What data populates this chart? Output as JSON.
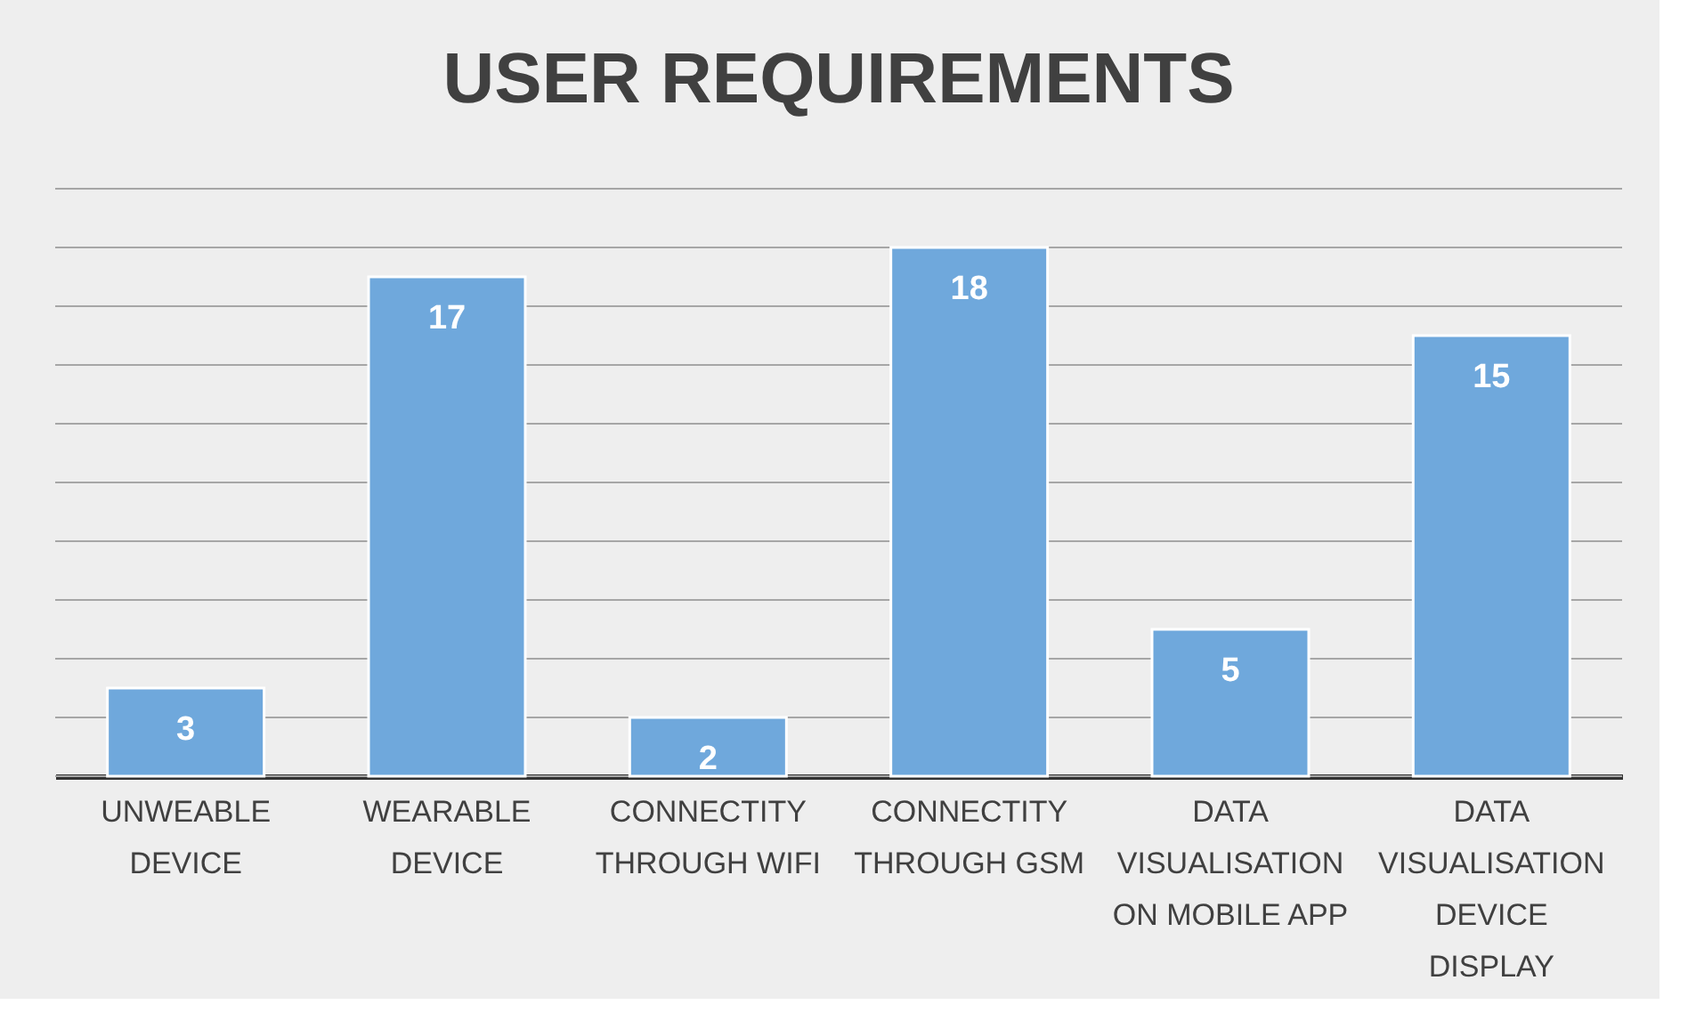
{
  "chart_data": {
    "type": "bar",
    "title": "USER REQUIREMENTS",
    "categories": [
      "UNWEABLE DEVICE",
      "WEARABLE DEVICE",
      "CONNECTITY THROUGH WIFI",
      "CONNECTITY THROUGH GSM",
      "DATA VISUALISATION ON MOBILE APP",
      "DATA VISUALISATION DEVICE DISPLAY"
    ],
    "values": [
      3,
      17,
      2,
      18,
      5,
      15
    ],
    "color": "#6fa8dc",
    "ylim": [
      0,
      20
    ],
    "yticks": [
      {
        "value": 0,
        "label": null
      },
      {
        "value": 2,
        "label": null
      },
      {
        "value": 4,
        "label": null
      },
      {
        "value": 6,
        "label": null
      },
      {
        "value": 8,
        "label": null
      },
      {
        "value": 10,
        "label": null
      },
      {
        "value": 12,
        "label": null
      },
      {
        "value": 14,
        "label": null
      },
      {
        "value": 16,
        "label": null
      },
      {
        "value": 18,
        "label": null
      },
      {
        "value": 20,
        "label": null
      }
    ],
    "tick_labels": "x",
    "grid": "y",
    "data_labels": true
  }
}
